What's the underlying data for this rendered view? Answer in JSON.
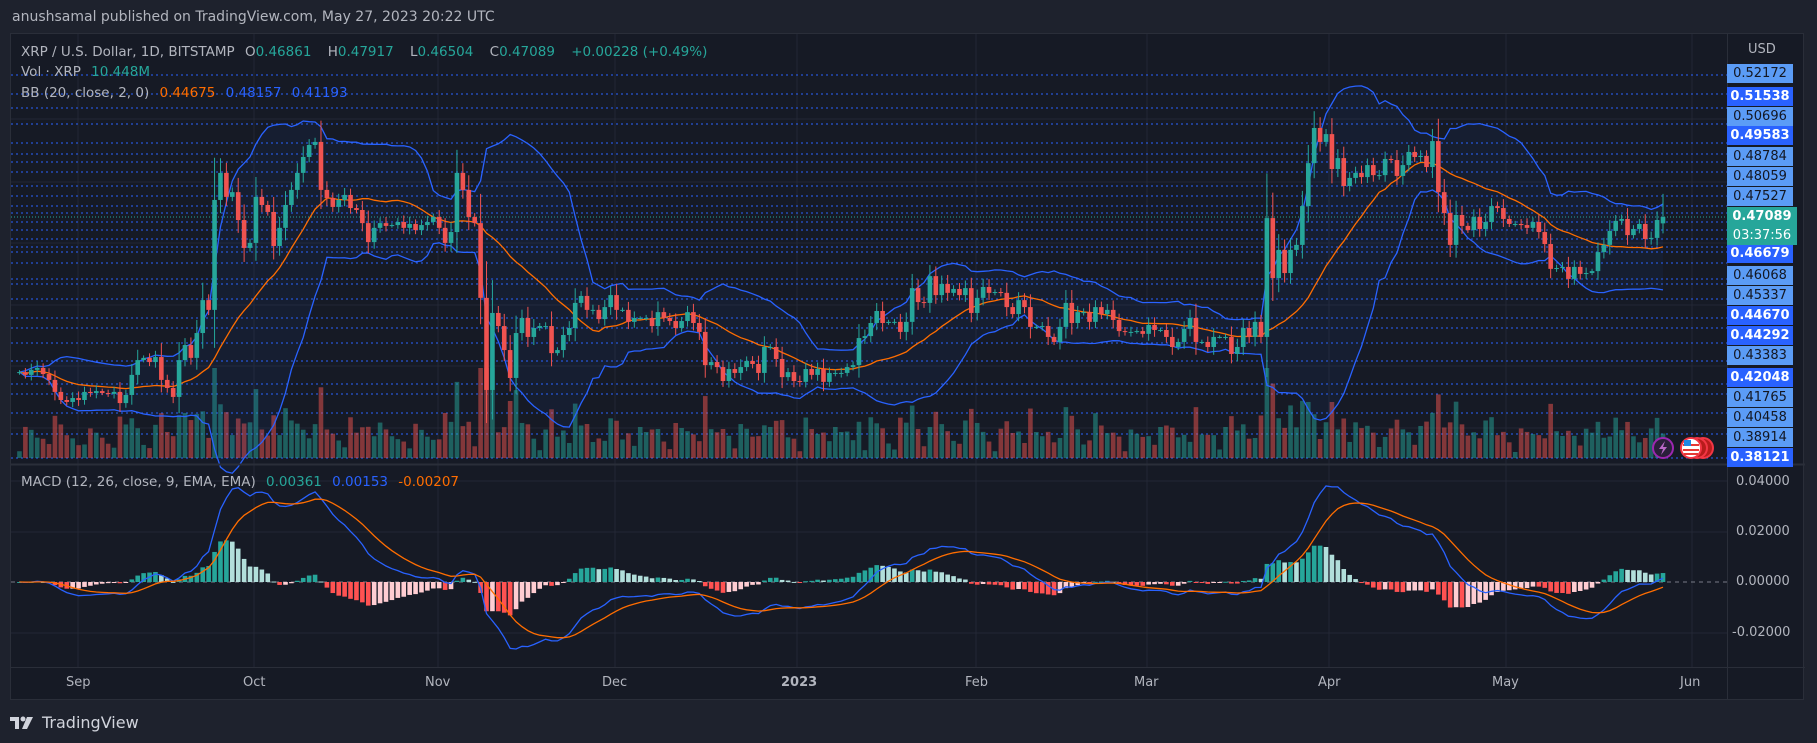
{
  "header": {
    "published": "anushsamal published on TradingView.com, May 27, 2023 20:22 UTC"
  },
  "legend": {
    "symbol": "XRP / U.S. Dollar, 1D, BITSTAMP",
    "o_label": "O",
    "o": "0.46861",
    "h_label": "H",
    "h": "0.47917",
    "l_label": "L",
    "l": "0.46504",
    "c_label": "C",
    "c": "0.47089",
    "change": "+0.00228 (+0.49%)",
    "vol_label": "Vol · XRP",
    "vol": "10.448M",
    "bb_label": "BB (20, close, 2, 0)",
    "bb_basis": "0.44675",
    "bb_upper": "0.48157",
    "bb_lower": "0.41193",
    "macd_label": "MACD (12, 26, close, 9, EMA, EMA)",
    "macd_hist": "0.00361",
    "macd": "0.00153",
    "macd_signal": "-0.00207"
  },
  "price_axis": {
    "currency": "USD",
    "labels": [
      {
        "v": "0.52172",
        "style": "light"
      },
      {
        "v": "0.51538",
        "style": "dark"
      },
      {
        "v": "0.50696",
        "style": "light"
      },
      {
        "v": "0.49583",
        "style": "dark"
      },
      {
        "v": "0.48784",
        "style": "light"
      },
      {
        "v": "0.48059",
        "style": "light"
      },
      {
        "v": "0.47527",
        "style": "light"
      },
      {
        "v": "0.46679",
        "style": "dark"
      },
      {
        "v": "0.46068",
        "style": "light"
      },
      {
        "v": "0.45337",
        "style": "light"
      },
      {
        "v": "0.44670",
        "style": "dark"
      },
      {
        "v": "0.44292",
        "style": "dark"
      },
      {
        "v": "0.43383",
        "style": "light"
      },
      {
        "v": "0.42048",
        "style": "dark"
      },
      {
        "v": "0.41765",
        "style": "light"
      },
      {
        "v": "0.40458",
        "style": "light"
      },
      {
        "v": "0.38914",
        "style": "light"
      },
      {
        "v": "0.38121",
        "style": "dark"
      }
    ],
    "current_price": "0.47089",
    "countdown": "03:37:56"
  },
  "macd_axis": {
    "labels": [
      "0.04000",
      "0.02000",
      "0.00000",
      "-0.02000"
    ]
  },
  "time_axis": {
    "labels": [
      "Sep",
      "Oct",
      "Nov",
      "Dec",
      "2023",
      "Feb",
      "Mar",
      "Apr",
      "May",
      "Jun"
    ]
  },
  "footer": {
    "brand": "TradingView"
  },
  "colors": {
    "up": "#26a69a",
    "down": "#ef5350",
    "bb_band": "#2962ff",
    "bb_basis": "#ff6d00",
    "macd": "#2962ff",
    "signal": "#ff6d00",
    "level_lines": "#2962ff"
  },
  "chart_data": {
    "type": "candlestick",
    "interval": "1D",
    "range": "2022-08-21 to 2023-05-27",
    "last_candle": {
      "open": 0.46861,
      "high": 0.47917,
      "low": 0.46504,
      "close": 0.47089
    },
    "indicators": [
      "Volume",
      "Bollinger Bands (20, 2)",
      "MACD (12, 26, 9)"
    ],
    "ylim": [
      0.381,
      0.522
    ],
    "closes": [
      0.4153,
      0.4143,
      0.4161,
      0.4168,
      0.4146,
      0.4125,
      0.4082,
      0.4053,
      0.4046,
      0.406,
      0.4053,
      0.4082,
      0.4078,
      0.4085,
      0.4078,
      0.4075,
      0.4082,
      0.4042,
      0.4071,
      0.4143,
      0.4196,
      0.4204,
      0.4189,
      0.4207,
      0.4125,
      0.4096,
      0.4064,
      0.4196,
      0.425,
      0.4204,
      0.4293,
      0.4411,
      0.4376,
      0.477,
      0.4867,
      0.4781,
      0.4798,
      0.4698,
      0.4598,
      0.4616,
      0.4781,
      0.4752,
      0.4727,
      0.4605,
      0.467,
      0.4752,
      0.4806,
      0.4867,
      0.4924,
      0.4967,
      0.4978,
      0.4806,
      0.4777,
      0.4745,
      0.477,
      0.4788,
      0.4741,
      0.4734,
      0.4687,
      0.4619,
      0.467,
      0.4687,
      0.4677,
      0.468,
      0.4691,
      0.467,
      0.4684,
      0.4662,
      0.468,
      0.4691,
      0.4709,
      0.467,
      0.4616,
      0.4655,
      0.4867,
      0.4806,
      0.4709,
      0.4687,
      0.4419,
      0.4089,
      0.4365,
      0.4318,
      0.4232,
      0.4132,
      0.4293,
      0.4347,
      0.4279,
      0.4311,
      0.4318,
      0.4318,
      0.4221,
      0.4232,
      0.4286,
      0.4311,
      0.4401,
      0.4426,
      0.4376,
      0.4376,
      0.4343,
      0.4386,
      0.4429,
      0.4376,
      0.4376,
      0.4333,
      0.4347,
      0.4347,
      0.4347,
      0.4318,
      0.4368,
      0.4347,
      0.4336,
      0.4311,
      0.4336,
      0.4368,
      0.4329,
      0.4297,
      0.4178,
      0.4189,
      0.4171,
      0.4121,
      0.4164,
      0.415,
      0.4171,
      0.4193,
      0.4182,
      0.415,
      0.4243,
      0.4243,
      0.42,
      0.4135,
      0.4153,
      0.4121,
      0.4118,
      0.4164,
      0.4143,
      0.4164,
      0.4118,
      0.415,
      0.415,
      0.415,
      0.4171,
      0.4178,
      0.4275,
      0.4282,
      0.4329,
      0.4372,
      0.4329,
      0.4333,
      0.4333,
      0.4297,
      0.4333,
      0.4454,
      0.4404,
      0.4401,
      0.4497,
      0.4429,
      0.4469,
      0.4437,
      0.4451,
      0.4429,
      0.4454,
      0.4365,
      0.4419,
      0.4458,
      0.4437,
      0.444,
      0.4437,
      0.4386,
      0.4361,
      0.4411,
      0.4386,
      0.4315,
      0.4315,
      0.4318,
      0.4279,
      0.4261,
      0.4315,
      0.4401,
      0.4329,
      0.4368,
      0.4368,
      0.4333,
      0.4386,
      0.4361,
      0.4376,
      0.434,
      0.43,
      0.4297,
      0.4297,
      0.43,
      0.429,
      0.4322,
      0.4304,
      0.4304,
      0.4279,
      0.4243,
      0.4261,
      0.4308,
      0.4347,
      0.4261,
      0.4261,
      0.4243,
      0.4279,
      0.4279,
      0.4279,
      0.4218,
      0.4243,
      0.4311,
      0.4279,
      0.4333,
      0.4279,
      0.4705,
      0.449,
      0.4591,
      0.4508,
      0.4591,
      0.4609,
      0.4748,
      0.4902,
      0.5028,
      0.4978,
      0.5006,
      0.4881,
      0.492,
      0.482,
      0.4849,
      0.4867,
      0.4852,
      0.4895,
      0.4859,
      0.4859,
      0.4917,
      0.4913,
      0.4856,
      0.4895,
      0.4942,
      0.4924,
      0.4928,
      0.4888,
      0.4981,
      0.4798,
      0.4723,
      0.4609,
      0.4716,
      0.4677,
      0.4662,
      0.4709,
      0.4666,
      0.4691,
      0.4748,
      0.4741,
      0.4702,
      0.4684,
      0.4684,
      0.468,
      0.467,
      0.4691,
      0.4655,
      0.4612,
      0.4523,
      0.4526,
      0.453,
      0.4487,
      0.453,
      0.4505,
      0.4508,
      0.4515,
      0.4583,
      0.4609,
      0.4659,
      0.4695,
      0.4702,
      0.4644,
      0.4666,
      0.4684,
      0.463,
      0.4634,
      0.4698,
      0.47089
    ]
  }
}
